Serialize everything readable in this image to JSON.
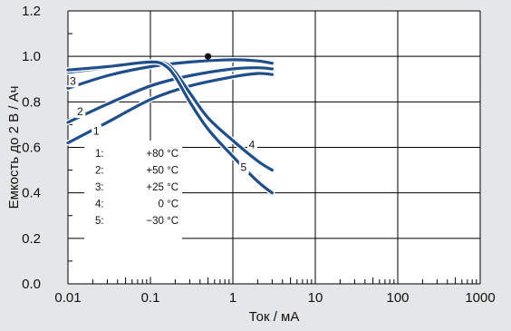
{
  "chart_data": {
    "type": "line",
    "xlabel": "Ток / мА",
    "ylabel": "Емкость до 2 В / Ач",
    "x_scale": "log",
    "xlim": [
      0.01,
      1000
    ],
    "ylim": [
      0.0,
      1.2
    ],
    "x_ticks": [
      "0.01",
      "0.1",
      "1",
      "10",
      "100",
      "1000"
    ],
    "y_ticks": [
      "0.0",
      "0.2",
      "0.4",
      "0.6",
      "0.8",
      "1.0",
      "1.2"
    ],
    "grid": true,
    "series_color": "#1f4e8c",
    "series": [
      {
        "label": "1",
        "x": [
          0.01,
          0.03,
          0.1,
          0.3,
          1,
          2,
          3
        ],
        "y": [
          0.62,
          0.71,
          0.81,
          0.87,
          0.91,
          0.925,
          0.92
        ]
      },
      {
        "label": "2",
        "x": [
          0.01,
          0.03,
          0.1,
          0.3,
          1,
          2,
          3
        ],
        "y": [
          0.71,
          0.79,
          0.87,
          0.915,
          0.945,
          0.95,
          0.945
        ]
      },
      {
        "label": "3",
        "x": [
          0.01,
          0.03,
          0.1,
          0.3,
          1,
          2,
          3
        ],
        "y": [
          0.86,
          0.915,
          0.955,
          0.975,
          0.985,
          0.98,
          0.97
        ]
      },
      {
        "label": "4",
        "x": [
          0.01,
          0.03,
          0.1,
          0.15,
          0.2,
          0.3,
          0.5,
          1,
          2,
          3
        ],
        "y": [
          0.93,
          0.95,
          0.975,
          0.97,
          0.93,
          0.84,
          0.73,
          0.63,
          0.54,
          0.5
        ]
      },
      {
        "label": "5",
        "x": [
          0.01,
          0.03,
          0.1,
          0.15,
          0.2,
          0.3,
          0.5,
          1,
          2,
          3
        ],
        "y": [
          0.94,
          0.955,
          0.975,
          0.96,
          0.91,
          0.8,
          0.68,
          0.56,
          0.45,
          0.4
        ]
      }
    ],
    "marker": {
      "x": 0.5,
      "y": 1.0
    },
    "legend": {
      "placement": "bottom-left",
      "entries": [
        {
          "num": "1:",
          "text": "+80 °C"
        },
        {
          "num": "2:",
          "text": "+50 °C"
        },
        {
          "num": "3:",
          "text": "+25 °C"
        },
        {
          "num": "4:",
          "text": "0 °C"
        },
        {
          "num": "5:",
          "text": "−30 °C"
        }
      ]
    }
  }
}
